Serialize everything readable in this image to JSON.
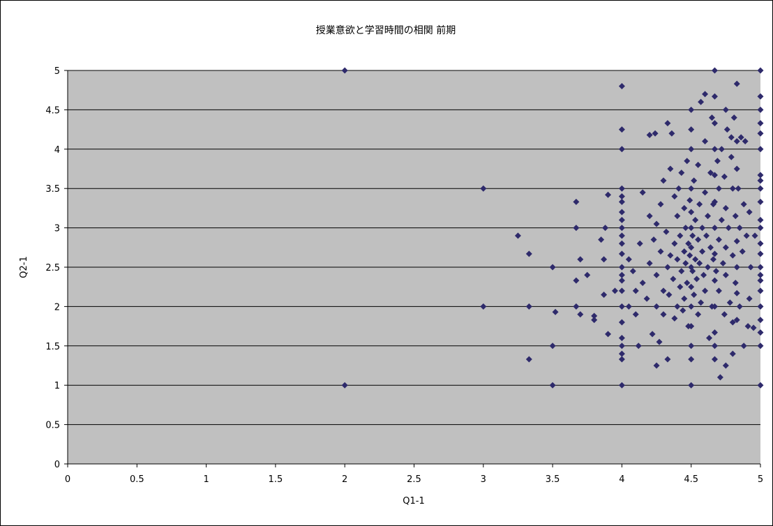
{
  "colors": {
    "plot_area_fill": "#c0c0c0",
    "marker": "#2e2a6b",
    "gridline": "#000000",
    "frame": "#000000"
  },
  "chart_data": {
    "type": "scatter",
    "title": "授業意欲と学習時間の相関 前期",
    "xlabel": "Q1-1",
    "ylabel": "Q2-1",
    "xlim": [
      0,
      5
    ],
    "ylim": [
      0,
      5
    ],
    "xticks": [
      "0",
      "0.5",
      "1",
      "1.5",
      "2",
      "2.5",
      "3",
      "3.5",
      "4",
      "4.5",
      "5"
    ],
    "yticks": [
      "0",
      "0.5",
      "1",
      "1.5",
      "2",
      "2.5",
      "3",
      "3.5",
      "4",
      "4.5",
      "5"
    ],
    "grid": "horizontal",
    "legend": "none",
    "marker": "diamond",
    "series": [
      {
        "points": [
          [
            2,
            5
          ],
          [
            2,
            1
          ],
          [
            3,
            3.5
          ],
          [
            3,
            2
          ],
          [
            3.25,
            2.9
          ],
          [
            3.33,
            2.67
          ],
          [
            3.33,
            2
          ],
          [
            3.33,
            1.33
          ],
          [
            3.5,
            2.5
          ],
          [
            3.5,
            1.5
          ],
          [
            3.5,
            1
          ],
          [
            3.52,
            1.93
          ],
          [
            3.67,
            3.33
          ],
          [
            3.67,
            3
          ],
          [
            3.67,
            2.33
          ],
          [
            3.67,
            2
          ],
          [
            3.7,
            2.6
          ],
          [
            3.7,
            1.9
          ],
          [
            3.75,
            2.4
          ],
          [
            3.8,
            1.88
          ],
          [
            3.8,
            1.83
          ],
          [
            3.85,
            2.85
          ],
          [
            3.87,
            2.6
          ],
          [
            3.87,
            2.15
          ],
          [
            3.88,
            3
          ],
          [
            3.9,
            1.65
          ],
          [
            3.9,
            3.42
          ],
          [
            3.95,
            2.2
          ],
          [
            4,
            4.8
          ],
          [
            4,
            4.25
          ],
          [
            4,
            4
          ],
          [
            4,
            3.5
          ],
          [
            4,
            3.4
          ],
          [
            4,
            3.33
          ],
          [
            4,
            3.2
          ],
          [
            4,
            3.1
          ],
          [
            4,
            3
          ],
          [
            4,
            2.9
          ],
          [
            4,
            2.8
          ],
          [
            4,
            2.67
          ],
          [
            4,
            2.5
          ],
          [
            4,
            2.4
          ],
          [
            4,
            2.33
          ],
          [
            4,
            2.2
          ],
          [
            4,
            2
          ],
          [
            4,
            1.8
          ],
          [
            4,
            1.6
          ],
          [
            4,
            1.5
          ],
          [
            4,
            1.4
          ],
          [
            4,
            1.33
          ],
          [
            4,
            1
          ],
          [
            4.05,
            2.6
          ],
          [
            4.05,
            2.0
          ],
          [
            4.08,
            2.45
          ],
          [
            4.1,
            1.9
          ],
          [
            4.1,
            2.2
          ],
          [
            4.12,
            1.5
          ],
          [
            4.13,
            2.8
          ],
          [
            4.15,
            3.45
          ],
          [
            4.15,
            2.3
          ],
          [
            4.18,
            2.1
          ],
          [
            4.2,
            4.18
          ],
          [
            4.2,
            2.55
          ],
          [
            4.2,
            3.15
          ],
          [
            4.22,
            1.65
          ],
          [
            4.23,
            2.85
          ],
          [
            4.24,
            4.2
          ],
          [
            4.25,
            3.05
          ],
          [
            4.25,
            2.4
          ],
          [
            4.25,
            2.0
          ],
          [
            4.25,
            1.25
          ],
          [
            4.27,
            1.55
          ],
          [
            4.28,
            3.3
          ],
          [
            4.28,
            2.7
          ],
          [
            4.3,
            3.6
          ],
          [
            4.3,
            2.2
          ],
          [
            4.3,
            1.9
          ],
          [
            4.32,
            2.95
          ],
          [
            4.33,
            4.33
          ],
          [
            4.33,
            2.5
          ],
          [
            4.33,
            1.33
          ],
          [
            4.34,
            2.15
          ],
          [
            4.35,
            3.75
          ],
          [
            4.35,
            2.65
          ],
          [
            4.36,
            4.2
          ],
          [
            4.37,
            2.35
          ],
          [
            4.38,
            3.4
          ],
          [
            4.38,
            2.8
          ],
          [
            4.38,
            1.85
          ],
          [
            4.4,
            3.15
          ],
          [
            4.4,
            2.6
          ],
          [
            4.4,
            2.0
          ],
          [
            4.41,
            3.5
          ],
          [
            4.42,
            2.9
          ],
          [
            4.42,
            2.25
          ],
          [
            4.43,
            3.7
          ],
          [
            4.43,
            2.45
          ],
          [
            4.44,
            1.95
          ],
          [
            4.45,
            3.25
          ],
          [
            4.45,
            2.7
          ],
          [
            4.45,
            2.1
          ],
          [
            4.46,
            3.0
          ],
          [
            4.46,
            2.55
          ],
          [
            4.47,
            3.85
          ],
          [
            4.47,
            2.3
          ],
          [
            4.48,
            2.8
          ],
          [
            4.48,
            1.75
          ],
          [
            4.49,
            3.35
          ],
          [
            4.49,
            2.65
          ],
          [
            4.5,
            4.5
          ],
          [
            4.5,
            4.25
          ],
          [
            4.5,
            4
          ],
          [
            4.5,
            3.5
          ],
          [
            4.5,
            3.2
          ],
          [
            4.5,
            3
          ],
          [
            4.5,
            2.75
          ],
          [
            4.5,
            2.5
          ],
          [
            4.5,
            2.25
          ],
          [
            4.5,
            2
          ],
          [
            4.5,
            1.75
          ],
          [
            4.5,
            1.5
          ],
          [
            4.5,
            1.33
          ],
          [
            4.5,
            1
          ],
          [
            4.51,
            2.9
          ],
          [
            4.51,
            2.45
          ],
          [
            4.52,
            3.6
          ],
          [
            4.52,
            2.15
          ],
          [
            4.53,
            3.1
          ],
          [
            4.53,
            2.6
          ],
          [
            4.54,
            2.35
          ],
          [
            4.55,
            3.8
          ],
          [
            4.55,
            2.85
          ],
          [
            4.55,
            1.9
          ],
          [
            4.56,
            3.3
          ],
          [
            4.56,
            2.55
          ],
          [
            4.57,
            4.6
          ],
          [
            4.57,
            2.05
          ],
          [
            4.58,
            3.0
          ],
          [
            4.58,
            2.7
          ],
          [
            4.59,
            2.4
          ],
          [
            4.6,
            4.7
          ],
          [
            4.6,
            4.1
          ],
          [
            4.6,
            3.45
          ],
          [
            4.6,
            2.2
          ],
          [
            4.61,
            2.9
          ],
          [
            4.62,
            3.15
          ],
          [
            4.62,
            2.5
          ],
          [
            4.63,
            1.6
          ],
          [
            4.64,
            3.7
          ],
          [
            4.64,
            2.75
          ],
          [
            4.65,
            4.4
          ],
          [
            4.65,
            2.0
          ],
          [
            4.66,
            3.3
          ],
          [
            4.66,
            2.6
          ],
          [
            4.67,
            5
          ],
          [
            4.67,
            4.67
          ],
          [
            4.67,
            4.33
          ],
          [
            4.67,
            4
          ],
          [
            4.67,
            3.67
          ],
          [
            4.67,
            3.33
          ],
          [
            4.67,
            3
          ],
          [
            4.67,
            2.67
          ],
          [
            4.67,
            2.33
          ],
          [
            4.67,
            2
          ],
          [
            4.67,
            1.67
          ],
          [
            4.67,
            1.5
          ],
          [
            4.67,
            1.33
          ],
          [
            4.68,
            2.45
          ],
          [
            4.69,
            3.85
          ],
          [
            4.7,
            3.5
          ],
          [
            4.7,
            2.85
          ],
          [
            4.7,
            2.2
          ],
          [
            4.71,
            1.1
          ],
          [
            4.72,
            4.0
          ],
          [
            4.72,
            3.1
          ],
          [
            4.73,
            2.55
          ],
          [
            4.74,
            3.65
          ],
          [
            4.74,
            1.9
          ],
          [
            4.75,
            4.5
          ],
          [
            4.75,
            3.25
          ],
          [
            4.75,
            2.75
          ],
          [
            4.75,
            2.4
          ],
          [
            4.75,
            1.25
          ],
          [
            4.76,
            4.25
          ],
          [
            4.77,
            3.0
          ],
          [
            4.78,
            2.05
          ],
          [
            4.79,
            4.15
          ],
          [
            4.79,
            3.9
          ],
          [
            4.8,
            3.5
          ],
          [
            4.8,
            2.65
          ],
          [
            4.8,
            1.8
          ],
          [
            4.8,
            1.4
          ],
          [
            4.81,
            4.4
          ],
          [
            4.82,
            3.15
          ],
          [
            4.82,
            2.3
          ],
          [
            4.83,
            4.83
          ],
          [
            4.83,
            4.1
          ],
          [
            4.83,
            3.75
          ],
          [
            4.83,
            2.83
          ],
          [
            4.83,
            2.5
          ],
          [
            4.83,
            2.17
          ],
          [
            4.83,
            1.83
          ],
          [
            4.84,
            3.5
          ],
          [
            4.85,
            3.0
          ],
          [
            4.85,
            2.0
          ],
          [
            4.86,
            4.15
          ],
          [
            4.87,
            2.7
          ],
          [
            4.88,
            1.5
          ],
          [
            4.88,
            3.3
          ],
          [
            4.89,
            4.1
          ],
          [
            4.9,
            2.9
          ],
          [
            4.91,
            1.75
          ],
          [
            4.92,
            3.2
          ],
          [
            4.92,
            2.1
          ],
          [
            4.93,
            2.5
          ],
          [
            4.95,
            1.73
          ],
          [
            4.96,
            2.9
          ],
          [
            5,
            5
          ],
          [
            5,
            4.67
          ],
          [
            5,
            4.5
          ],
          [
            5,
            4.33
          ],
          [
            5,
            4.2
          ],
          [
            5,
            4
          ],
          [
            5,
            3.67
          ],
          [
            5,
            3.6
          ],
          [
            5,
            3.5
          ],
          [
            5,
            3.33
          ],
          [
            5,
            3.1
          ],
          [
            5,
            3
          ],
          [
            5,
            2.8
          ],
          [
            5,
            2.67
          ],
          [
            5,
            2.5
          ],
          [
            5,
            2.4
          ],
          [
            5,
            2.33
          ],
          [
            5,
            2.2
          ],
          [
            5,
            2
          ],
          [
            5,
            1.83
          ],
          [
            5,
            1.67
          ],
          [
            5,
            1.5
          ],
          [
            5,
            1
          ]
        ]
      }
    ]
  }
}
